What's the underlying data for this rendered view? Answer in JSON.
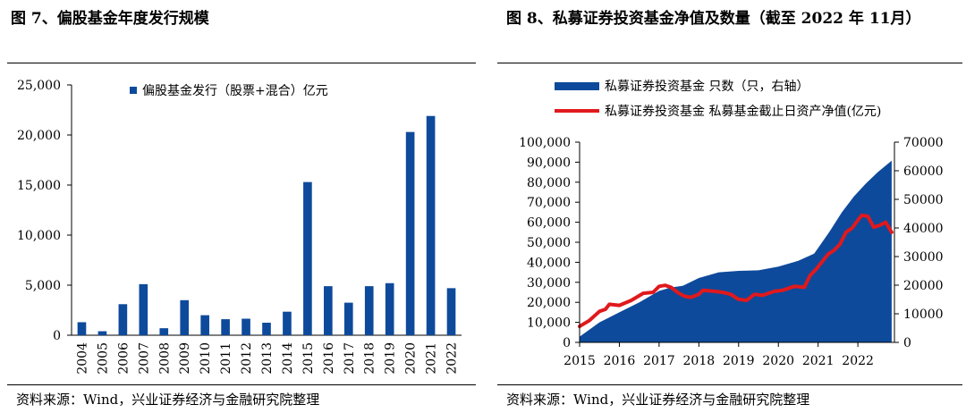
{
  "left": {
    "title": "图 7、偏股基金年度发行规模",
    "source": "资料来源：Wind，兴业证券经济与金融研究院整理",
    "chart_data": {
      "type": "bar",
      "categories": [
        "2004",
        "2005",
        "2006",
        "2007",
        "2008",
        "2009",
        "2010",
        "2011",
        "2012",
        "2013",
        "2014",
        "2015",
        "2016",
        "2017",
        "2018",
        "2019",
        "2020",
        "2021",
        "2022"
      ],
      "series": [
        {
          "name": "偏股基金发行（股票+混合）亿元",
          "values": [
            1300,
            400,
            3100,
            5100,
            700,
            3500,
            2000,
            1600,
            1650,
            1250,
            2350,
            15300,
            4900,
            3250,
            4900,
            5200,
            20300,
            21900,
            4700
          ]
        }
      ],
      "ylim": [
        0,
        25000
      ],
      "yticks": [
        "0",
        "5,000",
        "10,000",
        "15,000",
        "20,000",
        "25,000"
      ],
      "colors": {
        "bar": "#0e4a9b"
      },
      "legend_position": "top-center"
    }
  },
  "right": {
    "title": "图 8、私募证券投资基金净值及数量（截至 2022 年 11月）",
    "source": "资料来源：Wind，兴业证券经济与金融研究院整理",
    "chart_data": {
      "type": "area",
      "x_years": [
        "2015",
        "2016",
        "2017",
        "2018",
        "2019",
        "2020",
        "2021",
        "2022"
      ],
      "x_range": [
        "2015-01",
        "2022-11"
      ],
      "left_yticks": [
        "0",
        "10,000",
        "20,000",
        "30,000",
        "40,000",
        "50,000",
        "60,000",
        "70,000",
        "80,000",
        "90,000",
        "100,000"
      ],
      "right_yticks": [
        "0",
        "10000",
        "20000",
        "30000",
        "40000",
        "50000",
        "60000",
        "70000"
      ],
      "left_ylim": [
        0,
        100000
      ],
      "right_ylim": [
        0,
        70000
      ],
      "series": [
        {
          "name": "私募证券投资基金 只数（只，右轴）",
          "type": "area",
          "axis": "right",
          "color": "#0e4a9b",
          "x": [
            2015.0,
            2015.5,
            2016.0,
            2016.5,
            2017.0,
            2017.3,
            2017.6,
            2018.0,
            2018.5,
            2019.0,
            2019.5,
            2020.0,
            2020.5,
            2020.9,
            2021.0,
            2021.3,
            2021.6,
            2021.9,
            2022.2,
            2022.5,
            2022.85
          ],
          "y": [
            2000,
            7000,
            10500,
            14000,
            18000,
            19200,
            19800,
            22500,
            24500,
            25000,
            25200,
            26500,
            28500,
            31000,
            33000,
            39000,
            45500,
            51000,
            55500,
            59500,
            63500
          ]
        },
        {
          "name": "私募证券投资基金 私募基金截止日资产净值(亿元)",
          "type": "line",
          "axis": "left",
          "color": "#e0191d",
          "x": [
            2015.0,
            2015.25,
            2015.5,
            2015.65,
            2015.75,
            2016.0,
            2016.3,
            2016.6,
            2016.85,
            2017.0,
            2017.15,
            2017.3,
            2017.5,
            2017.65,
            2017.8,
            2018.0,
            2018.1,
            2018.4,
            2018.6,
            2018.8,
            2019.0,
            2019.2,
            2019.4,
            2019.6,
            2019.9,
            2020.1,
            2020.4,
            2020.65,
            2020.8,
            2020.95,
            2021.05,
            2021.25,
            2021.4,
            2021.55,
            2021.7,
            2021.85,
            2022.0,
            2022.1,
            2022.25,
            2022.4,
            2022.55,
            2022.7,
            2022.85
          ],
          "y": [
            8000,
            11000,
            15500,
            16500,
            19000,
            18500,
            21000,
            24500,
            25000,
            28000,
            28500,
            27500,
            24500,
            23000,
            22500,
            24000,
            26000,
            25500,
            25000,
            24000,
            21500,
            21000,
            24000,
            23500,
            25500,
            26000,
            28000,
            27500,
            33500,
            36500,
            39000,
            44000,
            46000,
            49000,
            55000,
            57000,
            61000,
            63500,
            63000,
            57500,
            58500,
            60000,
            55000
          ]
        }
      ],
      "legend_position": "top-left"
    }
  }
}
